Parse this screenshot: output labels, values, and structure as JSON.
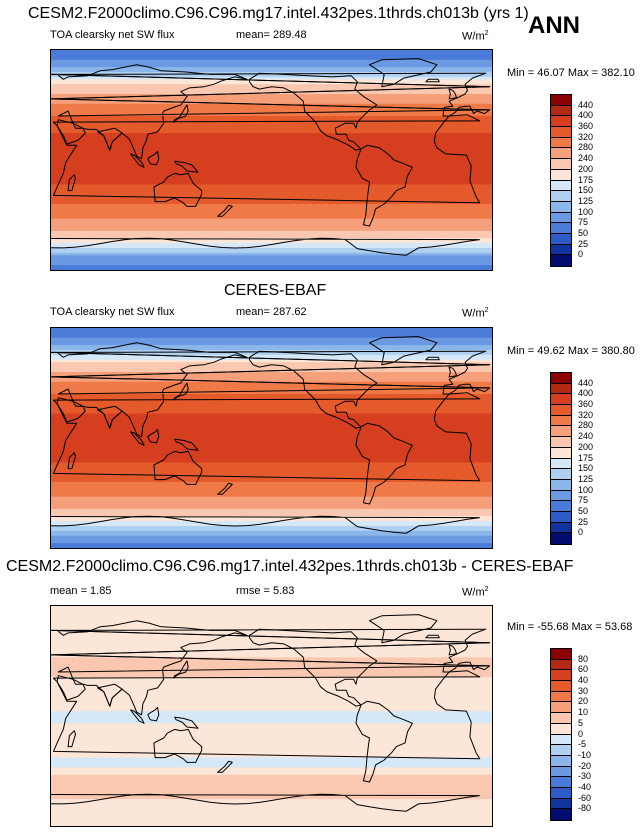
{
  "season": "ANN",
  "units_base": "W/m",
  "units_exp": "2",
  "panels": [
    {
      "title": "CESM2.F2000climo.C96.C96.mg17.intel.432pes.1thrds.ch013b (yrs 1)",
      "variable": "TOA clearsky net SW flux",
      "stat": "mean= 289.48",
      "minmax": "Min =  46.07 Max = 382.10"
    },
    {
      "title": "CERES-EBAF",
      "variable": "TOA clearsky net SW flux",
      "stat": "mean= 287.62",
      "minmax": "Min =  49.62 Max = 380.80"
    },
    {
      "title": "CESM2.F2000climo.C96.C96.mg17.intel.432pes.1thrds.ch013b - CERES-EBAF",
      "stat_mean": "mean =   1.85",
      "stat_rmse": "rmse =   5.83",
      "minmax": "Min = -55.68 Max =  53.68"
    }
  ],
  "chart_data": [
    {
      "type": "heatmap",
      "title": "CESM2.F2000climo.C96.C96.mg17.intel.432pes.1thrds.ch013b (yrs 1)",
      "variable": "TOA clearsky net SW flux",
      "units": "W/m2",
      "mean": 289.48,
      "min": 46.07,
      "max": 382.1,
      "lat_profile": [
        [
          -90,
          60
        ],
        [
          -80,
          90
        ],
        [
          -70,
          160
        ],
        [
          -60,
          230
        ],
        [
          -45,
          290
        ],
        [
          -30,
          340
        ],
        [
          -15,
          372
        ],
        [
          0,
          378
        ],
        [
          15,
          372
        ],
        [
          30,
          345
        ],
        [
          45,
          290
        ],
        [
          60,
          210
        ],
        [
          70,
          140
        ],
        [
          80,
          80
        ],
        [
          90,
          50
        ]
      ],
      "colorbar": {
        "levels": [
          "440",
          "400",
          "360",
          "320",
          "280",
          "240",
          "200",
          "175",
          "150",
          "125",
          "100",
          "75",
          "50",
          "25",
          "0"
        ],
        "colors": [
          "#8b0000",
          "#b22a14",
          "#d53e1e",
          "#e55a2a",
          "#ef7a48",
          "#f5a07a",
          "#fac8b0",
          "#fbe6d8",
          "#d4e8f8",
          "#b0d0f2",
          "#8ab6ea",
          "#6b99e2",
          "#4a7bd8",
          "#2d5cc8",
          "#12329e",
          "#000c6e"
        ]
      }
    },
    {
      "type": "heatmap",
      "title": "CERES-EBAF",
      "variable": "TOA clearsky net SW flux",
      "units": "W/m2",
      "mean": 287.62,
      "min": 49.62,
      "max": 380.8,
      "lat_profile": [
        [
          -90,
          62
        ],
        [
          -80,
          95
        ],
        [
          -70,
          165
        ],
        [
          -60,
          230
        ],
        [
          -45,
          288
        ],
        [
          -30,
          338
        ],
        [
          -15,
          370
        ],
        [
          0,
          376
        ],
        [
          15,
          370
        ],
        [
          30,
          343
        ],
        [
          45,
          288
        ],
        [
          60,
          208
        ],
        [
          70,
          138
        ],
        [
          80,
          78
        ],
        [
          90,
          52
        ]
      ],
      "colorbar": {
        "levels": [
          "440",
          "400",
          "360",
          "320",
          "280",
          "240",
          "200",
          "175",
          "150",
          "125",
          "100",
          "75",
          "50",
          "25",
          "0"
        ],
        "colors": [
          "#8b0000",
          "#b22a14",
          "#d53e1e",
          "#e55a2a",
          "#ef7a48",
          "#f5a07a",
          "#fac8b0",
          "#fbe6d8",
          "#d4e8f8",
          "#b0d0f2",
          "#8ab6ea",
          "#6b99e2",
          "#4a7bd8",
          "#2d5cc8",
          "#12329e",
          "#000c6e"
        ]
      }
    },
    {
      "type": "heatmap",
      "title": "CESM2.F2000climo.C96.C96.mg17.intel.432pes.1thrds.ch013b - CERES-EBAF",
      "units": "W/m2",
      "mean": 1.85,
      "rmse": 5.83,
      "min": -55.68,
      "max": 53.68,
      "lat_profile": [
        [
          -90,
          2
        ],
        [
          -75,
          3
        ],
        [
          -60,
          7
        ],
        [
          -50,
          6
        ],
        [
          -40,
          -2
        ],
        [
          -25,
          3
        ],
        [
          -10,
          1
        ],
        [
          0,
          -2
        ],
        [
          10,
          2
        ],
        [
          25,
          4
        ],
        [
          40,
          6
        ],
        [
          55,
          4
        ],
        [
          70,
          3
        ],
        [
          85,
          1
        ],
        [
          90,
          0
        ]
      ],
      "colorbar": {
        "levels": [
          "80",
          "60",
          "40",
          "30",
          "20",
          "10",
          "5",
          "0",
          "-5",
          "-10",
          "-20",
          "-30",
          "-40",
          "-60",
          "-80"
        ],
        "colors": [
          "#8b0000",
          "#b22a14",
          "#d53e1e",
          "#e55a2a",
          "#ef7a48",
          "#f5a07a",
          "#fac8b0",
          "#fbe6d8",
          "#d4e8f8",
          "#b0d0f2",
          "#8ab6ea",
          "#6b99e2",
          "#4a7bd8",
          "#2d5cc8",
          "#12329e",
          "#000c6e"
        ]
      }
    }
  ]
}
